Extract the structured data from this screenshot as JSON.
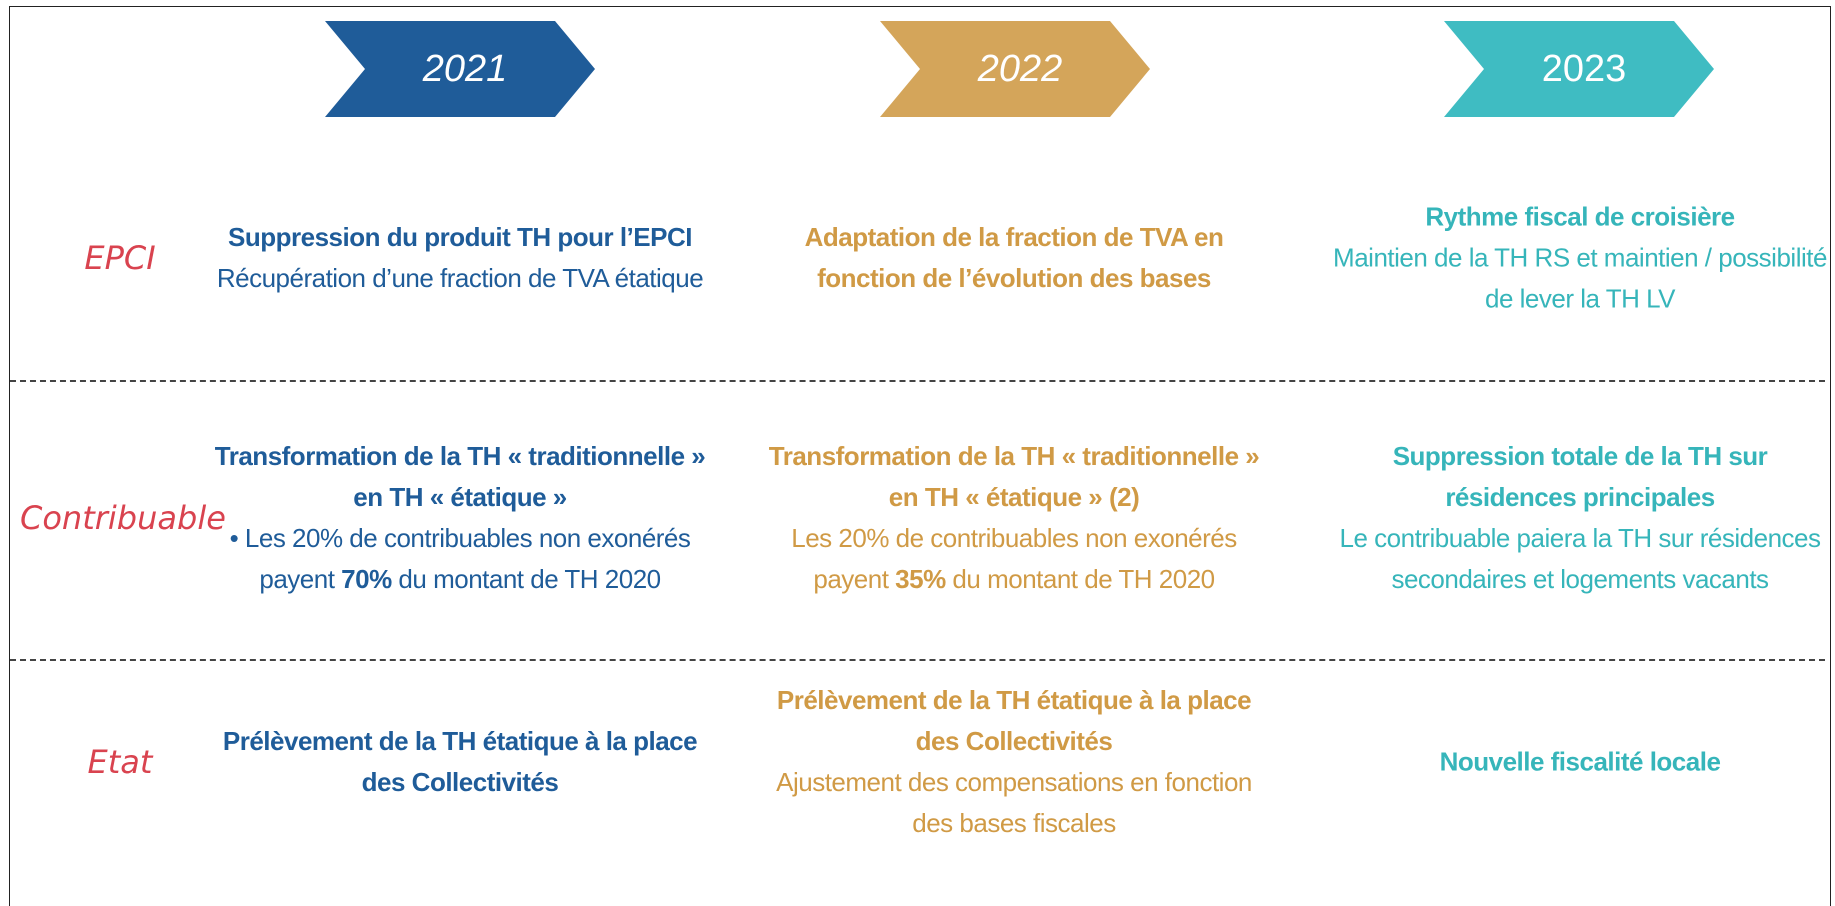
{
  "years": [
    {
      "label": "2021",
      "color": "#1f5c99",
      "text_color": "#1f5c99",
      "italic": true
    },
    {
      "label": "2022",
      "color": "#d4a55a",
      "text_color": "#d09a45",
      "italic": true
    },
    {
      "label": "2023",
      "color": "#3fbcc2",
      "text_color": "#36b5ba",
      "italic": false
    }
  ],
  "label_color": "#d9434f",
  "rows": [
    {
      "label": "EPCI",
      "cells": [
        {
          "heading": "Suppression du produit TH pour l’EPCI",
          "body": [
            {
              "text": "Récupération d’une fraction de TVA étatique"
            }
          ]
        },
        {
          "heading": "Adaptation de la fraction de TVA en fonction de l’évolution des bases"
        },
        {
          "heading": "Rythme fiscal de croisière",
          "body": [
            {
              "text": "Maintien de la TH RS et maintien / possibilité de lever la TH LV"
            }
          ]
        }
      ]
    },
    {
      "label": "Contribuable",
      "cells": [
        {
          "heading": "Transformation de la TH « traditionnelle » en TH « étatique »",
          "body": [
            {
              "text": "• Les 20% de contribuables non exonérés payent "
            },
            {
              "text": "70%",
              "strong": true
            },
            {
              "text": " du montant de TH 2020"
            }
          ]
        },
        {
          "heading": "Transformation de la TH « traditionnelle » en TH « étatique » (2)",
          "body": [
            {
              "text": "Les 20% de contribuables non exonérés payent "
            },
            {
              "text": "35%",
              "strong": true
            },
            {
              "text": " du montant de TH 2020"
            }
          ]
        },
        {
          "heading": "Suppression totale de la TH sur résidences principales",
          "body": [
            {
              "text": "Le contribuable paiera la TH sur résidences secondaires et logements vacants"
            }
          ]
        }
      ]
    },
    {
      "label": "Etat",
      "cells": [
        {
          "heading": "Prélèvement de la TH étatique à la place des Collectivités"
        },
        {
          "heading": "Prélèvement de la TH étatique à la place des Collectivités",
          "body": [
            {
              "text": "Ajustement des compensations en fonction des bases fiscales"
            }
          ]
        },
        {
          "heading": "Nouvelle fiscalité locale"
        }
      ]
    }
  ]
}
